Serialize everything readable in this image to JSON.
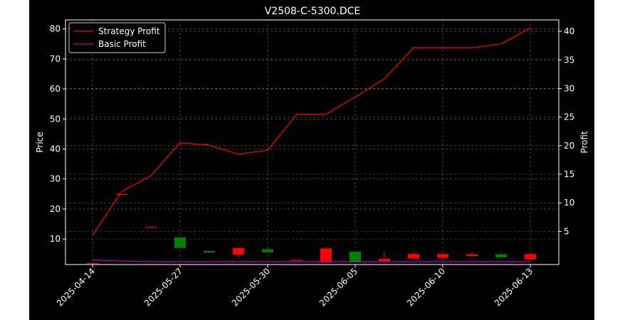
{
  "chart_data": {
    "type": "candlestick",
    "title": "V2508-C-5300.DCE",
    "ylabel_left": "Price",
    "ylabel_right": "Profit",
    "xlabel": "",
    "grid": true,
    "legend_position": "top-left",
    "left_axis": {
      "ylim": [
        1.5,
        83
      ],
      "ticks": [
        10,
        20,
        30,
        40,
        50,
        60,
        70,
        80
      ]
    },
    "right_axis": {
      "ylim": [
        -0.8,
        42
      ],
      "ticks": [
        5,
        10,
        15,
        20,
        25,
        30,
        35,
        40
      ]
    },
    "x_tick_labels": [
      {
        "index": 0,
        "label": "2025-04-14"
      },
      {
        "index": 3,
        "label": "2025-05-27"
      },
      {
        "index": 6,
        "label": "2025-05-30"
      },
      {
        "index": 9,
        "label": "2025-06-05"
      },
      {
        "index": 12,
        "label": "2025-06-10"
      },
      {
        "index": 15,
        "label": "2025-06-13"
      }
    ],
    "candles": [
      {
        "i": 0,
        "open": 2.0,
        "close": 2.0,
        "high": 2.0,
        "low": 2.0,
        "color": "red"
      },
      {
        "i": 1,
        "open": 25.0,
        "close": 25.0,
        "high": 25.0,
        "low": 25.0,
        "color": "red"
      },
      {
        "i": 2,
        "open": 14.0,
        "close": 14.0,
        "high": 14.0,
        "low": 14.0,
        "color": "red"
      },
      {
        "i": 3,
        "open": 10.5,
        "close": 7.0,
        "high": 10.5,
        "low": 7.0,
        "color": "green"
      },
      {
        "i": 4,
        "open": 6.0,
        "close": 5.5,
        "high": 6.0,
        "low": 5.5,
        "color": "green"
      },
      {
        "i": 5,
        "open": 4.8,
        "close": 7.0,
        "high": 7.2,
        "low": 3.5,
        "color": "red"
      },
      {
        "i": 6,
        "open": 6.6,
        "close": 5.6,
        "high": 7.0,
        "low": 5.4,
        "color": "green"
      },
      {
        "i": 7,
        "open": 2.8,
        "close": 3.0,
        "high": 3.0,
        "low": 2.8,
        "color": "red"
      },
      {
        "i": 8,
        "open": 2.2,
        "close": 6.9,
        "high": 7.2,
        "low": 2.2,
        "color": "red"
      },
      {
        "i": 9,
        "open": 5.8,
        "close": 2.2,
        "high": 5.8,
        "low": 2.2,
        "color": "green"
      },
      {
        "i": 10,
        "open": 2.6,
        "close": 3.4,
        "high": 5.6,
        "low": 2.6,
        "color": "red"
      },
      {
        "i": 11,
        "open": 3.5,
        "close": 5.0,
        "high": 5.8,
        "low": 3.5,
        "color": "red"
      },
      {
        "i": 12,
        "open": 3.7,
        "close": 5.0,
        "high": 5.3,
        "low": 3.5,
        "color": "red"
      },
      {
        "i": 13,
        "open": 4.3,
        "close": 4.9,
        "high": 5.7,
        "low": 4.1,
        "color": "red"
      },
      {
        "i": 14,
        "open": 4.9,
        "close": 3.9,
        "high": 5.6,
        "low": 3.5,
        "color": "green"
      },
      {
        "i": 15,
        "open": 3.2,
        "close": 5.0,
        "high": 5.0,
        "low": 3.2,
        "color": "red"
      }
    ],
    "series": [
      {
        "name": "Strategy Profit",
        "axis": "right",
        "color": "#ff0000",
        "values": [
          4.3,
          12.0,
          14.7,
          20.5,
          20.1,
          18.5,
          19.2,
          25.5,
          25.5,
          28.5,
          31.7,
          37.1,
          37.1,
          37.1,
          37.8,
          40.6
        ]
      },
      {
        "name": "Basic Profit",
        "axis": "right",
        "color": "#bf00bf",
        "values": [
          0.0,
          -0.2,
          -0.3,
          -0.3,
          -0.3,
          -0.3,
          -0.3,
          -0.3,
          -0.3,
          -0.3,
          -0.3,
          -0.3,
          -0.3,
          -0.3,
          -0.3,
          -0.3
        ]
      }
    ],
    "legend": [
      {
        "label": "Strategy Profit",
        "color": "#ff0000"
      },
      {
        "label": "Basic Profit",
        "color": "#bf00bf"
      }
    ],
    "colors": {
      "background": "#000000",
      "up": "#ff0000",
      "down": "#008000"
    }
  }
}
